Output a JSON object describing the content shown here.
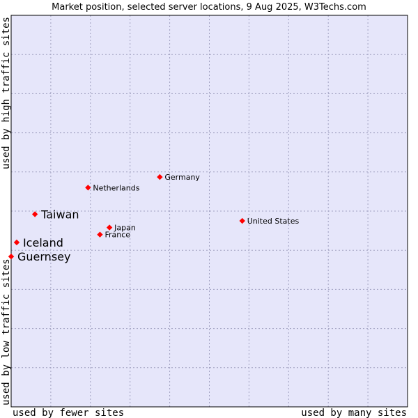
{
  "chart_data": {
    "type": "scatter",
    "title": "Market position, selected server locations, 9 Aug 2025, W3Techs.com",
    "xlabel_left": "used by fewer sites",
    "xlabel_right": "used by many sites",
    "ylabel_bottom": "used by low traffic sites",
    "ylabel_top": "used by high traffic sites",
    "xlim": [
      0,
      100
    ],
    "ylim": [
      0,
      100
    ],
    "grid": true,
    "colors": {
      "plot_background": "#e6e6fa",
      "grid": "#a0a0c0",
      "border": "#000000",
      "point": "#ff0000"
    },
    "points": [
      {
        "name": "Germany",
        "x": 37.5,
        "y": 58.7,
        "emphasis": "normal"
      },
      {
        "name": "Netherlands",
        "x": 19.4,
        "y": 56.0,
        "emphasis": "normal"
      },
      {
        "name": "Taiwan",
        "x": 6.0,
        "y": 49.2,
        "emphasis": "large"
      },
      {
        "name": "United States",
        "x": 58.3,
        "y": 47.5,
        "emphasis": "normal"
      },
      {
        "name": "Japan",
        "x": 24.8,
        "y": 45.8,
        "emphasis": "normal"
      },
      {
        "name": "France",
        "x": 22.4,
        "y": 44.0,
        "emphasis": "normal"
      },
      {
        "name": "Iceland",
        "x": 1.4,
        "y": 42.0,
        "emphasis": "large"
      },
      {
        "name": "Guernsey",
        "x": 0.0,
        "y": 38.4,
        "emphasis": "large"
      }
    ]
  }
}
